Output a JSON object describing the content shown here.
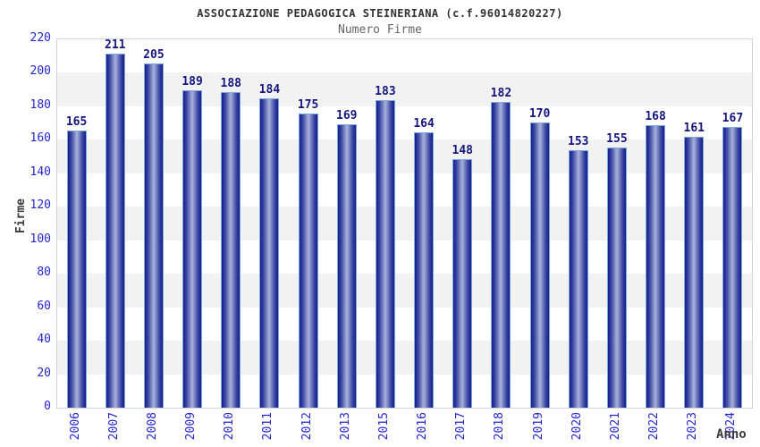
{
  "chart_data": {
    "type": "bar",
    "title": "ASSOCIAZIONE PEDAGOGICA STEINERIANA (c.f.96014820227)",
    "subtitle": "Numero Firme",
    "xlabel": "Anno",
    "ylabel": "Firme",
    "categories": [
      "2006",
      "2007",
      "2008",
      "2009",
      "2010",
      "2011",
      "2012",
      "2013",
      "2015",
      "2016",
      "2017",
      "2018",
      "2019",
      "2020",
      "2021",
      "2022",
      "2023",
      "2024"
    ],
    "values": [
      165,
      211,
      205,
      189,
      188,
      184,
      175,
      169,
      183,
      164,
      148,
      182,
      170,
      153,
      155,
      168,
      161,
      167
    ],
    "ylim": [
      0,
      220
    ],
    "ytick_step": 20,
    "legend": "none",
    "grid": "alternating horizontal bands every 20 units"
  },
  "colors": {
    "title": "#333333",
    "subtitle": "#666666",
    "axis_title": "#3a3a3a",
    "tick_label": "#2626cc",
    "value_label": "#15157d",
    "band_alt": "#f2f2f2",
    "band_main": "#ffffff",
    "plot_border": "#d3d3d3",
    "bar_border": "#7aaade",
    "bar_dark": "#141c8c",
    "bar_light": "#a9b1dc"
  }
}
